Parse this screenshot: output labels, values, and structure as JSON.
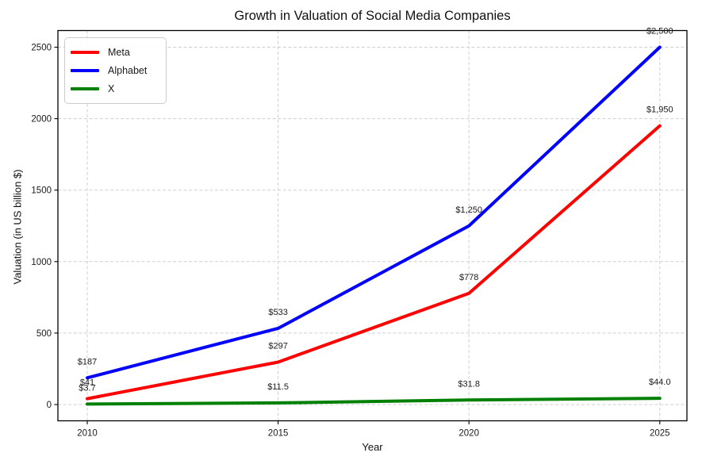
{
  "chart": {
    "title": "Growth in Valuation of Social Media Companies",
    "xlabel": "Year",
    "ylabel": "Valuation (in US billion $)"
  },
  "chart_data": {
    "type": "line",
    "title": "Growth in Valuation of Social Media Companies",
    "xlabel": "Year",
    "ylabel": "Valuation (in US billion $)",
    "x": [
      2010,
      2015,
      2020,
      2025
    ],
    "x_tick_labels": [
      "2010",
      "2015",
      "2020",
      "2025"
    ],
    "y_ticks": [
      0,
      500,
      1000,
      1500,
      2000,
      2500
    ],
    "y_tick_labels": [
      "0",
      "500",
      "1000",
      "1500",
      "2000",
      "2500"
    ],
    "ylim": [
      -115,
      2615
    ],
    "grid": true,
    "grid_style": "dashed",
    "grid_color": "#cfcfcf",
    "legend_position": "upper left",
    "series": [
      {
        "name": "Meta",
        "color": "#ff0000",
        "values": [
          41,
          297,
          778,
          1950
        ],
        "point_labels": [
          "$41",
          "$297",
          "$778",
          "$1,950"
        ]
      },
      {
        "name": "Alphabet",
        "color": "#0000ff",
        "values": [
          187,
          533,
          1250,
          2500
        ],
        "point_labels": [
          "$187",
          "$533",
          "$1,250",
          "$2,500"
        ]
      },
      {
        "name": "X",
        "color": "#008000",
        "values": [
          3.7,
          11.5,
          31.8,
          44.0
        ],
        "point_labels": [
          "$3.7",
          "$11.5",
          "$31.8",
          "$44.0"
        ]
      }
    ]
  }
}
